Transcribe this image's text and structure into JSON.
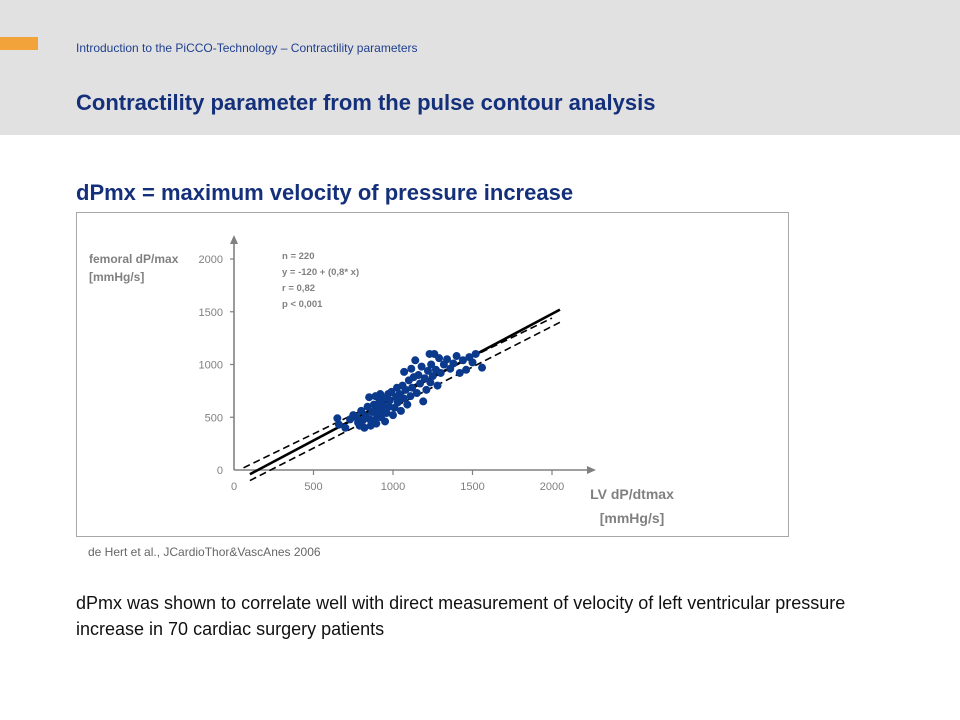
{
  "header": {
    "breadcrumb": "Introduction to the PiCCO-Technology – Contractility parameters",
    "title": "Contractility parameter from the pulse contour analysis",
    "accent_color": "#f2a33a",
    "background_color": "#e1e1e1"
  },
  "subtitle": "dPmx = maximum velocity of pressure increase",
  "chart_data": {
    "type": "scatter",
    "ylabel_lines": [
      "femoral dP/max",
      "[mmHg/s]"
    ],
    "xlabel_lines": [
      "LV dP/dtmax",
      "[mmHg/s]"
    ],
    "xlim": [
      0,
      2000
    ],
    "ylim": [
      0,
      2000
    ],
    "x_ticks": [
      "0",
      "500",
      "1000",
      "1500",
      "2000"
    ],
    "y_ticks": [
      "0",
      "500",
      "1000",
      "1500",
      "2000"
    ],
    "grid": false,
    "stats_lines": [
      "n = 220",
      "y = -120 + (0,8* x)",
      "r = 0,82",
      "p < 0,001"
    ],
    "marker_color": "#0b3a8c",
    "regression": {
      "intercept": -120,
      "slope": 0.8
    },
    "points": [
      [
        650,
        490
      ],
      [
        660,
        430
      ],
      [
        700,
        400
      ],
      [
        730,
        480
      ],
      [
        750,
        520
      ],
      [
        770,
        500
      ],
      [
        780,
        450
      ],
      [
        790,
        420
      ],
      [
        800,
        560
      ],
      [
        810,
        470
      ],
      [
        820,
        400
      ],
      [
        830,
        510
      ],
      [
        840,
        600
      ],
      [
        850,
        690
      ],
      [
        855,
        480
      ],
      [
        860,
        420
      ],
      [
        870,
        550
      ],
      [
        880,
        620
      ],
      [
        885,
        470
      ],
      [
        890,
        700
      ],
      [
        895,
        440
      ],
      [
        900,
        520
      ],
      [
        910,
        580
      ],
      [
        915,
        650
      ],
      [
        920,
        720
      ],
      [
        925,
        500
      ],
      [
        930,
        560
      ],
      [
        940,
        610
      ],
      [
        945,
        680
      ],
      [
        950,
        460
      ],
      [
        960,
        540
      ],
      [
        970,
        720
      ],
      [
        975,
        600
      ],
      [
        980,
        660
      ],
      [
        990,
        740
      ],
      [
        1000,
        520
      ],
      [
        1010,
        590
      ],
      [
        1020,
        690
      ],
      [
        1025,
        780
      ],
      [
        1030,
        640
      ],
      [
        1040,
        720
      ],
      [
        1050,
        560
      ],
      [
        1060,
        800
      ],
      [
        1065,
        680
      ],
      [
        1070,
        930
      ],
      [
        1080,
        760
      ],
      [
        1090,
        620
      ],
      [
        1100,
        850
      ],
      [
        1110,
        700
      ],
      [
        1115,
        960
      ],
      [
        1120,
        780
      ],
      [
        1130,
        880
      ],
      [
        1140,
        1040
      ],
      [
        1150,
        730
      ],
      [
        1160,
        900
      ],
      [
        1170,
        820
      ],
      [
        1180,
        980
      ],
      [
        1190,
        650
      ],
      [
        1200,
        870
      ],
      [
        1210,
        760
      ],
      [
        1220,
        940
      ],
      [
        1230,
        1100
      ],
      [
        1235,
        830
      ],
      [
        1240,
        1000
      ],
      [
        1250,
        890
      ],
      [
        1260,
        1100
      ],
      [
        1270,
        950
      ],
      [
        1280,
        800
      ],
      [
        1290,
        1060
      ],
      [
        1300,
        920
      ],
      [
        1320,
        1000
      ],
      [
        1340,
        1050
      ],
      [
        1360,
        960
      ],
      [
        1380,
        1010
      ],
      [
        1400,
        1080
      ],
      [
        1420,
        920
      ],
      [
        1440,
        1040
      ],
      [
        1460,
        950
      ],
      [
        1480,
        1070
      ],
      [
        1500,
        1020
      ],
      [
        1520,
        1100
      ],
      [
        1560,
        970
      ]
    ]
  },
  "citation": "de Hert et al., JCardioThor&VascAnes 2006",
  "body_text": "dPmx was shown to correlate well with direct measurement of velocity of left ventricular pressure increase in 70 cardiac surgery patients"
}
